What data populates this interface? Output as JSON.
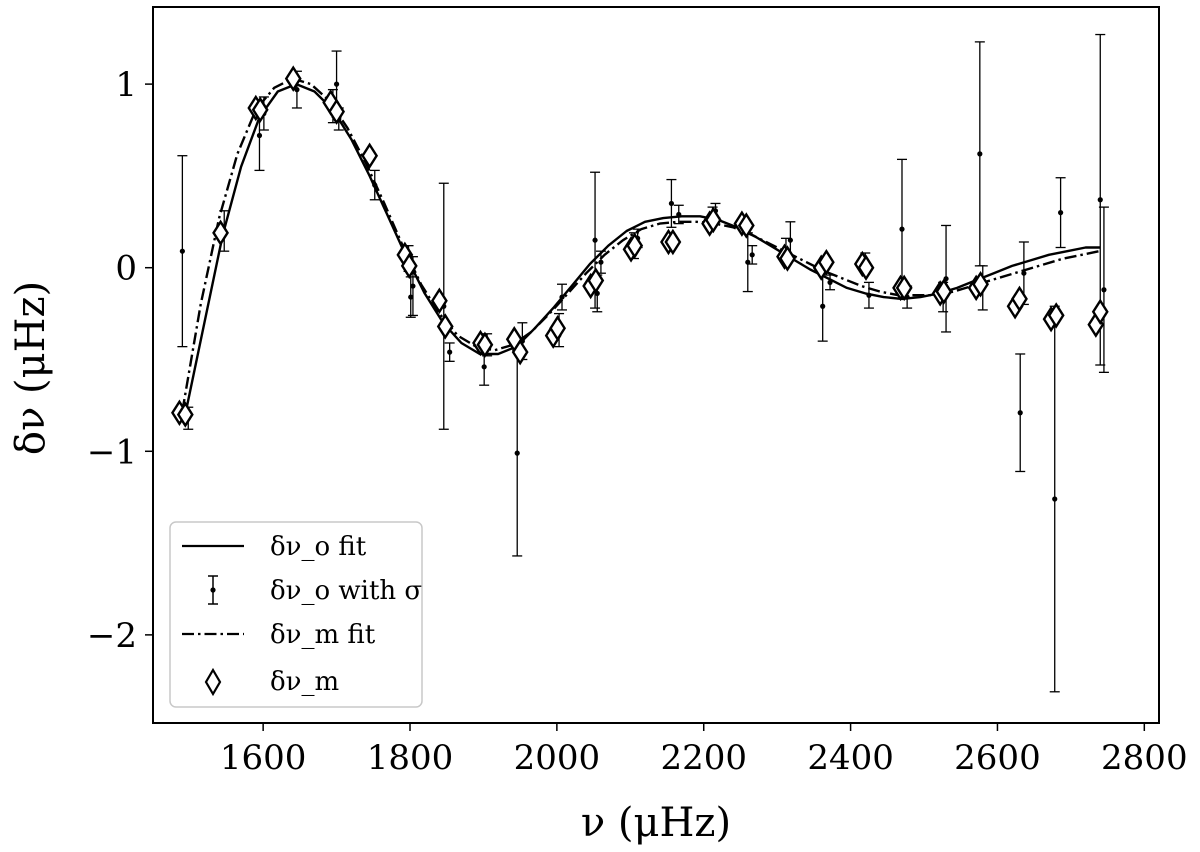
{
  "chart_data": {
    "type": "scatter",
    "xlabel": "ν (μHz)",
    "ylabel": "δν (μHz)",
    "xlim": [
      1450,
      2820
    ],
    "ylim": [
      -2.48,
      1.42
    ],
    "x_ticks": [
      1600,
      1800,
      2000,
      2200,
      2400,
      2600,
      2800
    ],
    "y_ticks": [
      1,
      0,
      -1,
      -2
    ],
    "x_tick_labels": [
      "1600",
      "1800",
      "2000",
      "2200",
      "2400",
      "2600",
      "2800"
    ],
    "y_tick_labels": [
      "1",
      "0",
      "−1",
      "−2"
    ],
    "grid": false,
    "legend_position": "lower-left",
    "legend": [
      {
        "label": "δν_o fit",
        "kind": "solid-line"
      },
      {
        "label": "δν_o with σ",
        "kind": "errorbar"
      },
      {
        "label": "δν_m fit",
        "kind": "dashdot-line"
      },
      {
        "label": "δν_m",
        "kind": "diamond"
      }
    ],
    "series": [
      {
        "name": "δν_o fit",
        "style": "solid",
        "x": [
          1495,
          1520,
          1545,
          1570,
          1595,
          1620,
          1645,
          1670,
          1695,
          1720,
          1745,
          1770,
          1795,
          1820,
          1845,
          1870,
          1895,
          1920,
          1945,
          1970,
          1995,
          2020,
          2045,
          2070,
          2095,
          2120,
          2145,
          2170,
          2195,
          2220,
          2245,
          2270,
          2295,
          2320,
          2345,
          2370,
          2395,
          2420,
          2445,
          2470,
          2495,
          2520,
          2545,
          2570,
          2595,
          2620,
          2645,
          2670,
          2695,
          2720,
          2740
        ],
        "y": [
          -0.78,
          -0.3,
          0.18,
          0.55,
          0.82,
          0.96,
          1.0,
          0.96,
          0.86,
          0.7,
          0.5,
          0.28,
          0.06,
          -0.14,
          -0.3,
          -0.41,
          -0.47,
          -0.47,
          -0.43,
          -0.33,
          -0.22,
          -0.1,
          0.02,
          0.12,
          0.2,
          0.25,
          0.27,
          0.28,
          0.28,
          0.26,
          0.22,
          0.17,
          0.11,
          0.05,
          -0.01,
          -0.06,
          -0.11,
          -0.14,
          -0.16,
          -0.17,
          -0.16,
          -0.14,
          -0.11,
          -0.07,
          -0.03,
          0.01,
          0.04,
          0.07,
          0.09,
          0.11,
          0.11
        ]
      },
      {
        "name": "δν_m fit",
        "style": "dashdot",
        "x": [
          1490,
          1515,
          1540,
          1565,
          1590,
          1615,
          1640,
          1665,
          1690,
          1715,
          1740,
          1765,
          1790,
          1815,
          1840,
          1865,
          1890,
          1915,
          1940,
          1965,
          1990,
          2015,
          2040,
          2065,
          2090,
          2115,
          2140,
          2165,
          2190,
          2215,
          2240,
          2265,
          2290,
          2315,
          2340,
          2365,
          2390,
          2415,
          2440,
          2465,
          2490,
          2515,
          2540,
          2565,
          2590,
          2615,
          2640,
          2665,
          2690,
          2715,
          2738
        ],
        "y": [
          -0.78,
          -0.2,
          0.27,
          0.62,
          0.86,
          0.98,
          1.03,
          1.0,
          0.91,
          0.76,
          0.57,
          0.35,
          0.12,
          -0.09,
          -0.25,
          -0.37,
          -0.43,
          -0.45,
          -0.42,
          -0.35,
          -0.25,
          -0.14,
          -0.03,
          0.07,
          0.15,
          0.21,
          0.24,
          0.25,
          0.25,
          0.24,
          0.22,
          0.18,
          0.13,
          0.08,
          0.03,
          -0.02,
          -0.06,
          -0.1,
          -0.13,
          -0.15,
          -0.15,
          -0.15,
          -0.13,
          -0.1,
          -0.07,
          -0.04,
          -0.01,
          0.02,
          0.05,
          0.07,
          0.09
        ]
      },
      {
        "name": "δν_o with σ",
        "style": "errorbar",
        "points": [
          {
            "x": 1490,
            "y": 0.09,
            "err": 0.52
          },
          {
            "x": 1498,
            "y": -0.82,
            "err": 0.06
          },
          {
            "x": 1547,
            "y": 0.2,
            "err": 0.11
          },
          {
            "x": 1595,
            "y": 0.72,
            "err": 0.19
          },
          {
            "x": 1601,
            "y": 0.84,
            "err": 0.09
          },
          {
            "x": 1646,
            "y": 0.97,
            "err": 0.1
          },
          {
            "x": 1695,
            "y": 0.88,
            "err": 0.09
          },
          {
            "x": 1700,
            "y": 1.0,
            "err": 0.18
          },
          {
            "x": 1703,
            "y": 0.81,
            "err": 0.06
          },
          {
            "x": 1752,
            "y": 0.45,
            "err": 0.08
          },
          {
            "x": 1798,
            "y": 0.05,
            "err": 0.07
          },
          {
            "x": 1801,
            "y": -0.16,
            "err": 0.11
          },
          {
            "x": 1804,
            "y": -0.1,
            "err": 0.16
          },
          {
            "x": 1846,
            "y": -0.21,
            "err": 0.67
          },
          {
            "x": 1854,
            "y": -0.46,
            "err": 0.05
          },
          {
            "x": 1901,
            "y": -0.54,
            "err": 0.1
          },
          {
            "x": 1905,
            "y": -0.42,
            "err": 0.06
          },
          {
            "x": 1946,
            "y": -1.01,
            "err": 0.56
          },
          {
            "x": 1953,
            "y": -0.4,
            "err": 0.1
          },
          {
            "x": 2003,
            "y": -0.34,
            "err": 0.09
          },
          {
            "x": 2007,
            "y": -0.16,
            "err": 0.07
          },
          {
            "x": 2052,
            "y": 0.15,
            "err": 0.37
          },
          {
            "x": 2055,
            "y": -0.14,
            "err": 0.1
          },
          {
            "x": 2060,
            "y": 0.03,
            "err": 0.06
          },
          {
            "x": 2105,
            "y": 0.12,
            "err": 0.07
          },
          {
            "x": 2110,
            "y": 0.16,
            "err": 0.05
          },
          {
            "x": 2156,
            "y": 0.35,
            "err": 0.13
          },
          {
            "x": 2166,
            "y": 0.29,
            "err": 0.05
          },
          {
            "x": 2212,
            "y": 0.29,
            "err": 0.04
          },
          {
            "x": 2216,
            "y": 0.31,
            "err": 0.04
          },
          {
            "x": 2260,
            "y": 0.03,
            "err": 0.16
          },
          {
            "x": 2266,
            "y": 0.07,
            "err": 0.05
          },
          {
            "x": 2312,
            "y": 0.1,
            "err": 0.06
          },
          {
            "x": 2318,
            "y": 0.15,
            "err": 0.1
          },
          {
            "x": 2362,
            "y": -0.21,
            "err": 0.19
          },
          {
            "x": 2372,
            "y": -0.08,
            "err": 0.04
          },
          {
            "x": 2420,
            "y": 0.03,
            "err": 0.05
          },
          {
            "x": 2425,
            "y": -0.15,
            "err": 0.07
          },
          {
            "x": 2470,
            "y": 0.21,
            "err": 0.38
          },
          {
            "x": 2477,
            "y": -0.16,
            "err": 0.06
          },
          {
            "x": 2526,
            "y": -0.16,
            "err": 0.08
          },
          {
            "x": 2530,
            "y": -0.06,
            "err": 0.29
          },
          {
            "x": 2576,
            "y": 0.62,
            "err": 0.61
          },
          {
            "x": 2580,
            "y": -0.11,
            "err": 0.12
          },
          {
            "x": 2631,
            "y": -0.79,
            "err": 0.32
          },
          {
            "x": 2636,
            "y": -0.03,
            "err": 0.17
          },
          {
            "x": 2678,
            "y": -1.26,
            "err": 1.05
          },
          {
            "x": 2686,
            "y": 0.3,
            "err": 0.19
          },
          {
            "x": 2740,
            "y": 0.37,
            "err": 0.9
          },
          {
            "x": 2745,
            "y": -0.12,
            "err": 0.45
          }
        ]
      },
      {
        "name": "δν_m",
        "style": "diamond",
        "points": [
          {
            "x": 1486,
            "y": -0.79
          },
          {
            "x": 1494,
            "y": -0.8
          },
          {
            "x": 1542,
            "y": 0.19
          },
          {
            "x": 1590,
            "y": 0.87
          },
          {
            "x": 1596,
            "y": 0.86
          },
          {
            "x": 1641,
            "y": 1.03
          },
          {
            "x": 1692,
            "y": 0.9
          },
          {
            "x": 1700,
            "y": 0.85
          },
          {
            "x": 1745,
            "y": 0.61
          },
          {
            "x": 1793,
            "y": 0.07
          },
          {
            "x": 1799,
            "y": 0.01
          },
          {
            "x": 1840,
            "y": -0.18
          },
          {
            "x": 1848,
            "y": -0.32
          },
          {
            "x": 1896,
            "y": -0.41
          },
          {
            "x": 1902,
            "y": -0.42
          },
          {
            "x": 1942,
            "y": -0.39
          },
          {
            "x": 1950,
            "y": -0.46
          },
          {
            "x": 1995,
            "y": -0.37
          },
          {
            "x": 2001,
            "y": -0.33
          },
          {
            "x": 2046,
            "y": -0.1
          },
          {
            "x": 2053,
            "y": -0.07
          },
          {
            "x": 2101,
            "y": 0.1
          },
          {
            "x": 2106,
            "y": 0.12
          },
          {
            "x": 2152,
            "y": 0.14
          },
          {
            "x": 2158,
            "y": 0.14
          },
          {
            "x": 2208,
            "y": 0.24
          },
          {
            "x": 2213,
            "y": 0.26
          },
          {
            "x": 2252,
            "y": 0.24
          },
          {
            "x": 2258,
            "y": 0.23
          },
          {
            "x": 2310,
            "y": 0.06
          },
          {
            "x": 2314,
            "y": 0.05
          },
          {
            "x": 2360,
            "y": 0.0
          },
          {
            "x": 2367,
            "y": 0.03
          },
          {
            "x": 2416,
            "y": 0.02
          },
          {
            "x": 2421,
            "y": 0.0
          },
          {
            "x": 2468,
            "y": -0.11
          },
          {
            "x": 2473,
            "y": -0.11
          },
          {
            "x": 2522,
            "y": -0.14
          },
          {
            "x": 2527,
            "y": -0.13
          },
          {
            "x": 2571,
            "y": -0.11
          },
          {
            "x": 2577,
            "y": -0.09
          },
          {
            "x": 2624,
            "y": -0.21
          },
          {
            "x": 2630,
            "y": -0.17
          },
          {
            "x": 2673,
            "y": -0.28
          },
          {
            "x": 2680,
            "y": -0.26
          },
          {
            "x": 2734,
            "y": -0.31
          },
          {
            "x": 2740,
            "y": -0.24
          }
        ]
      }
    ]
  }
}
